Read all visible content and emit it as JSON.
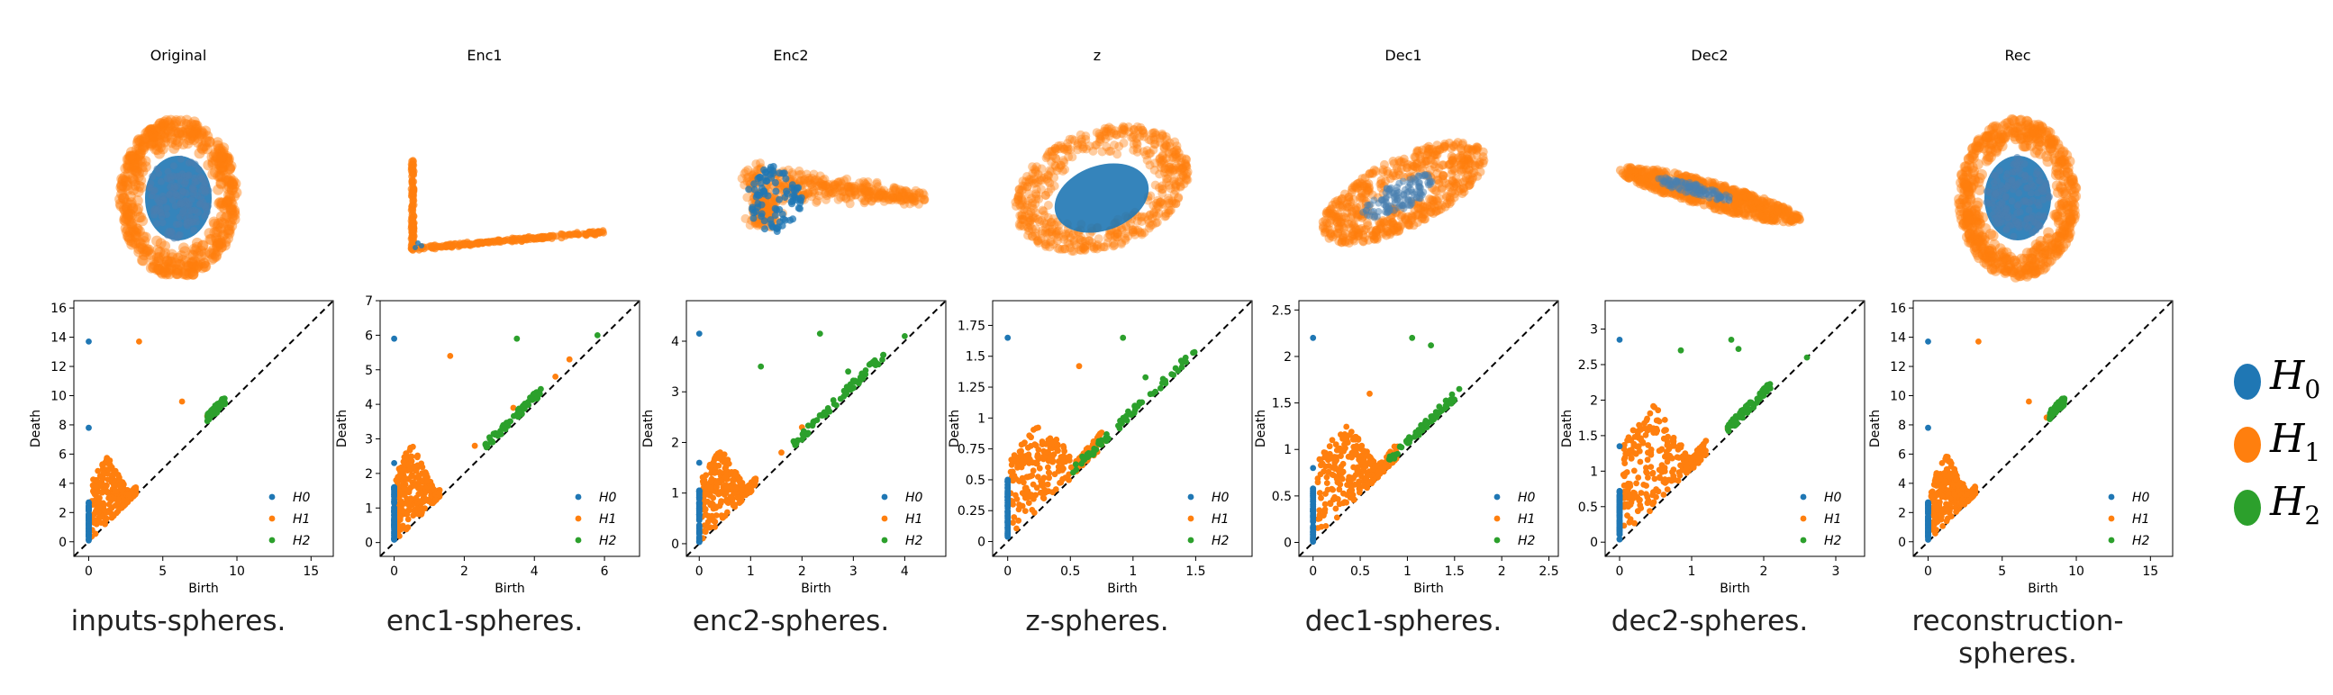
{
  "figure": {
    "panels": [
      {
        "title": "Original",
        "caption": "inputs-spheres.",
        "cloud": "circles"
      },
      {
        "title": "Enc1",
        "caption": "enc1-spheres.",
        "cloud": "lshape"
      },
      {
        "title": "Enc2",
        "caption": "enc2-spheres.",
        "cloud": "fold"
      },
      {
        "title": "z",
        "caption": "z-spheres.",
        "cloud": "ellipse"
      },
      {
        "title": "Dec1",
        "caption": "dec1-spheres.",
        "cloud": "tilted"
      },
      {
        "title": "Dec2",
        "caption": "dec2-spheres.",
        "cloud": "bar"
      },
      {
        "title": "Rec",
        "caption": "reconstruction-spheres.",
        "cloud": "circles"
      }
    ]
  },
  "legend": {
    "items": [
      {
        "label": "H",
        "sub": "0",
        "color": "#1f77b4"
      },
      {
        "label": "H",
        "sub": "1",
        "color": "#ff7f0e"
      },
      {
        "label": "H",
        "sub": "2",
        "color": "#2ca02c"
      }
    ]
  },
  "colors": {
    "h0": "#1f77b4",
    "h1": "#ff7f0e",
    "h2": "#2ca02c",
    "diagonal": "#000000"
  },
  "chart_data": [
    {
      "type": "scatter",
      "title": "Original",
      "xlabel": "Birth",
      "ylabel": "Death",
      "xlim": [
        -1,
        16.5
      ],
      "ylim": [
        -1,
        16.5
      ],
      "xticks": [
        0,
        5,
        10,
        15
      ],
      "yticks": [
        0,
        2,
        4,
        6,
        8,
        10,
        12,
        14,
        16
      ],
      "legend_labels": [
        "H0",
        "H1",
        "H2"
      ],
      "legend_position": "bottom-right",
      "h0_outliers": [
        [
          0,
          13.7
        ],
        [
          0,
          7.8
        ]
      ],
      "h0_bulk_max": 2.7,
      "h1_cluster": {
        "birth_range": [
          0.2,
          3.2
        ],
        "max_death": 6.0
      },
      "h1_extra": [
        [
          3.4,
          13.7
        ],
        [
          8.0,
          8.6
        ],
        [
          8.3,
          8.8
        ],
        [
          6.3,
          9.6
        ]
      ],
      "h2_cluster": {
        "birth_range": [
          8.0,
          9.2
        ],
        "death_range": [
          8.3,
          9.5
        ]
      }
    },
    {
      "type": "scatter",
      "title": "Enc1",
      "xlabel": "Birth",
      "ylabel": "Death",
      "xlim": [
        -0.4,
        7
      ],
      "ylim": [
        -0.4,
        7
      ],
      "xticks": [
        0,
        2,
        4,
        6
      ],
      "yticks": [
        0,
        1,
        2,
        3,
        4,
        5,
        6,
        7
      ],
      "legend_labels": [
        "H0",
        "H1",
        "H2"
      ],
      "legend_position": "bottom-right",
      "h0_outliers": [
        [
          0,
          5.9
        ],
        [
          0,
          2.3
        ]
      ],
      "h0_bulk_max": 1.6,
      "h1_cluster": {
        "birth_range": [
          0.05,
          1.3
        ],
        "max_death": 2.9
      },
      "h1_extra": [
        [
          1.6,
          5.4
        ],
        [
          2.3,
          2.8
        ],
        [
          3.4,
          3.9
        ],
        [
          4.6,
          4.8
        ],
        [
          5.0,
          5.3
        ]
      ],
      "h2_cluster": {
        "birth_range": [
          2.6,
          4.2
        ],
        "death_range": [
          2.8,
          4.5
        ]
      },
      "h2_extra": [
        [
          3.5,
          5.9
        ],
        [
          5.8,
          6.0
        ]
      ]
    },
    {
      "type": "scatter",
      "title": "Enc2",
      "xlabel": "Birth",
      "ylabel": "Death",
      "xlim": [
        -0.25,
        4.8
      ],
      "ylim": [
        -0.25,
        4.8
      ],
      "xticks": [
        0,
        1,
        2,
        3,
        4
      ],
      "yticks": [
        0,
        1,
        2,
        3,
        4
      ],
      "legend_labels": [
        "H0",
        "H1",
        "H2"
      ],
      "legend_position": "bottom-right",
      "h0_outliers": [
        [
          0,
          4.15
        ],
        [
          0,
          1.6
        ]
      ],
      "h0_bulk_max": 1.05,
      "h1_cluster": {
        "birth_range": [
          0.05,
          1.1
        ],
        "max_death": 1.9
      },
      "h1_extra": [
        [
          1.6,
          1.8
        ],
        [
          2.0,
          2.3
        ]
      ],
      "h2_cluster": {
        "birth_range": [
          1.8,
          3.6
        ],
        "death_range": [
          2.0,
          3.9
        ]
      },
      "h2_extra": [
        [
          1.2,
          3.5
        ],
        [
          2.35,
          4.15
        ],
        [
          2.9,
          3.4
        ],
        [
          4.0,
          4.1
        ]
      ]
    },
    {
      "type": "scatter",
      "title": "z",
      "xlabel": "Birth",
      "ylabel": "Death",
      "xlim": [
        -0.12,
        1.95
      ],
      "ylim": [
        -0.12,
        1.95
      ],
      "xticks": [
        0.0,
        0.5,
        1.0,
        1.5
      ],
      "yticks": [
        0.0,
        0.25,
        0.5,
        0.75,
        1.0,
        1.25,
        1.5,
        1.75
      ],
      "legend_labels": [
        "H0",
        "H1",
        "H2"
      ],
      "legend_position": "bottom-right",
      "h0_outliers": [
        [
          0,
          1.65
        ]
      ],
      "h0_bulk_max": 0.5,
      "h1_cluster": {
        "birth_range": [
          0.02,
          0.75
        ],
        "max_death": 1.0
      },
      "h1_extra": [
        [
          0.57,
          1.42
        ]
      ],
      "h2_cluster": {
        "birth_range": [
          0.5,
          1.5
        ],
        "death_range": [
          0.6,
          1.6
        ]
      },
      "h2_extra": [
        [
          0.92,
          1.65
        ],
        [
          1.1,
          1.33
        ]
      ]
    },
    {
      "type": "scatter",
      "title": "Dec1",
      "xlabel": "Birth",
      "ylabel": "Death",
      "xlim": [
        -0.15,
        2.6
      ],
      "ylim": [
        -0.15,
        2.6
      ],
      "xticks": [
        0.0,
        0.5,
        1.0,
        1.5,
        2.0,
        2.5
      ],
      "yticks": [
        0.0,
        0.5,
        1.0,
        1.5,
        2.0,
        2.5
      ],
      "legend_labels": [
        "H0",
        "H1",
        "H2"
      ],
      "legend_position": "bottom-right",
      "h0_outliers": [
        [
          0,
          2.2
        ],
        [
          0,
          0.8
        ]
      ],
      "h0_bulk_max": 0.58,
      "h1_cluster": {
        "birth_range": [
          0.05,
          0.9
        ],
        "max_death": 1.3
      },
      "h1_extra": [
        [
          0.6,
          1.6
        ]
      ],
      "h2_cluster": {
        "birth_range": [
          0.8,
          1.5
        ],
        "death_range": [
          0.9,
          1.6
        ]
      },
      "h2_extra": [
        [
          1.05,
          2.2
        ],
        [
          1.25,
          2.12
        ],
        [
          1.55,
          1.65
        ]
      ]
    },
    {
      "type": "scatter",
      "title": "Dec2",
      "xlabel": "Birth",
      "ylabel": "Death",
      "xlim": [
        -0.2,
        3.4
      ],
      "ylim": [
        -0.2,
        3.4
      ],
      "xticks": [
        0,
        1,
        2,
        3
      ],
      "yticks": [
        0.0,
        0.5,
        1.0,
        1.5,
        2.0,
        2.5,
        3.0
      ],
      "legend_labels": [
        "H0",
        "H1",
        "H2"
      ],
      "legend_position": "bottom-right",
      "h0_outliers": [
        [
          0,
          2.85
        ],
        [
          0,
          1.35
        ]
      ],
      "h0_bulk_max": 0.72,
      "h1_cluster": {
        "birth_range": [
          0.05,
          1.2
        ],
        "max_death": 2.0
      },
      "h1_extra": [
        [
          1.5,
          1.6
        ]
      ],
      "h2_cluster": {
        "birth_range": [
          1.5,
          2.1
        ],
        "death_range": [
          1.6,
          2.2
        ]
      },
      "h2_extra": [
        [
          0.85,
          2.7
        ],
        [
          1.55,
          2.85
        ],
        [
          1.65,
          2.72
        ],
        [
          2.6,
          2.6
        ]
      ]
    },
    {
      "type": "scatter",
      "title": "Rec",
      "xlabel": "Birth",
      "ylabel": "Death",
      "xlim": [
        -1,
        16.5
      ],
      "ylim": [
        -1,
        16.5
      ],
      "xticks": [
        0,
        5,
        10,
        15
      ],
      "yticks": [
        0,
        2,
        4,
        6,
        8,
        10,
        12,
        14,
        16
      ],
      "legend_labels": [
        "H0",
        "H1",
        "H2"
      ],
      "legend_position": "bottom-right",
      "h0_outliers": [
        [
          0,
          13.7
        ],
        [
          0,
          7.8
        ]
      ],
      "h0_bulk_max": 2.7,
      "h1_cluster": {
        "birth_range": [
          0.2,
          3.2
        ],
        "max_death": 6.0
      },
      "h1_extra": [
        [
          3.4,
          13.7
        ],
        [
          8.0,
          8.5
        ],
        [
          6.8,
          9.6
        ]
      ],
      "h2_cluster": {
        "birth_range": [
          8.2,
          9.2
        ],
        "death_range": [
          8.5,
          9.5
        ]
      }
    }
  ]
}
